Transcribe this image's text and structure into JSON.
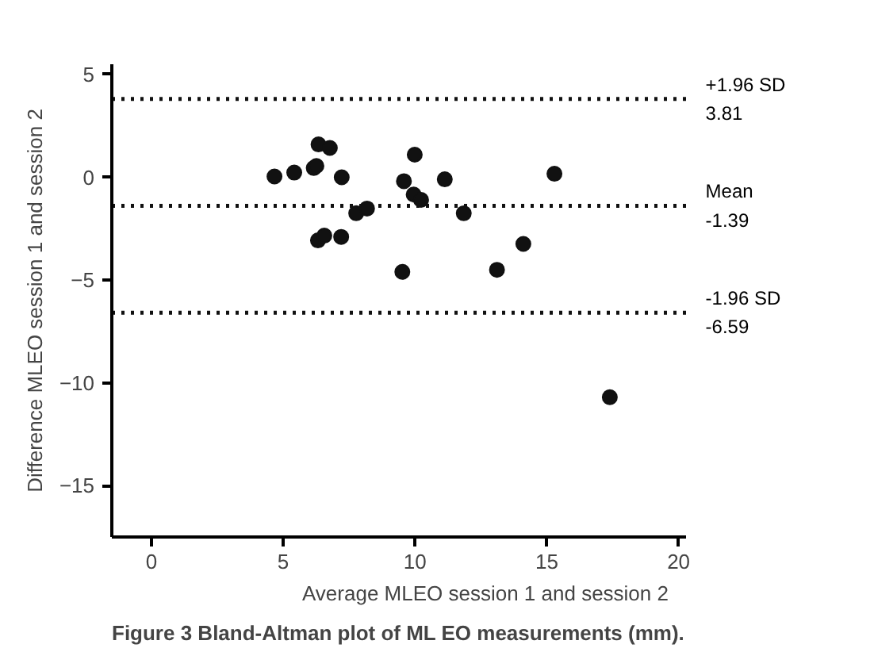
{
  "chart_data": {
    "type": "scatter",
    "xlabel": "Average MLEO session 1 and session 2",
    "ylabel": "Difference MLEO session 1 and session 2",
    "x": [
      4.67,
      5.42,
      6.16,
      6.26,
      6.34,
      6.77,
      6.32,
      6.56,
      7.22,
      7.2,
      7.77,
      8.18,
      9.52,
      9.58,
      9.99,
      9.95,
      10.23,
      11.13,
      11.85,
      13.11,
      14.11,
      15.29,
      17.39
    ],
    "series": [
      {
        "color": "#111111",
        "values": [
          0.04,
          0.23,
          0.45,
          0.55,
          1.6,
          1.43,
          -3.07,
          -2.84,
          0,
          -2.9,
          -1.75,
          -1.52,
          -4.6,
          -0.19,
          1.1,
          -0.84,
          -1.1,
          -0.1,
          -1.75,
          -4.5,
          -3.24,
          0.17,
          -10.7
        ]
      }
    ],
    "xlim": [
      -1.5,
      20.3
    ],
    "ylim": [
      -17.5,
      5.5
    ],
    "xticks": [
      0,
      5,
      10,
      15,
      20
    ],
    "yticks": [
      -15,
      -10,
      -5,
      0,
      5
    ],
    "marker": "circle",
    "grid": false,
    "ref_lines": [
      {
        "axis": "y",
        "value": 3.81,
        "label": "+1.96 SD\n3.81",
        "line_style": "dotted"
      },
      {
        "axis": "y",
        "value": -1.39,
        "label": "Mean\n-1.39",
        "line_style": "dotted"
      },
      {
        "axis": "y",
        "value": -6.59,
        "label": "-1.96 SD\n-6.59",
        "line_style": "dotted"
      }
    ],
    "annotations": [
      "Figure 3 Bland-Altman plot of ML EO measurements (mm)."
    ]
  }
}
